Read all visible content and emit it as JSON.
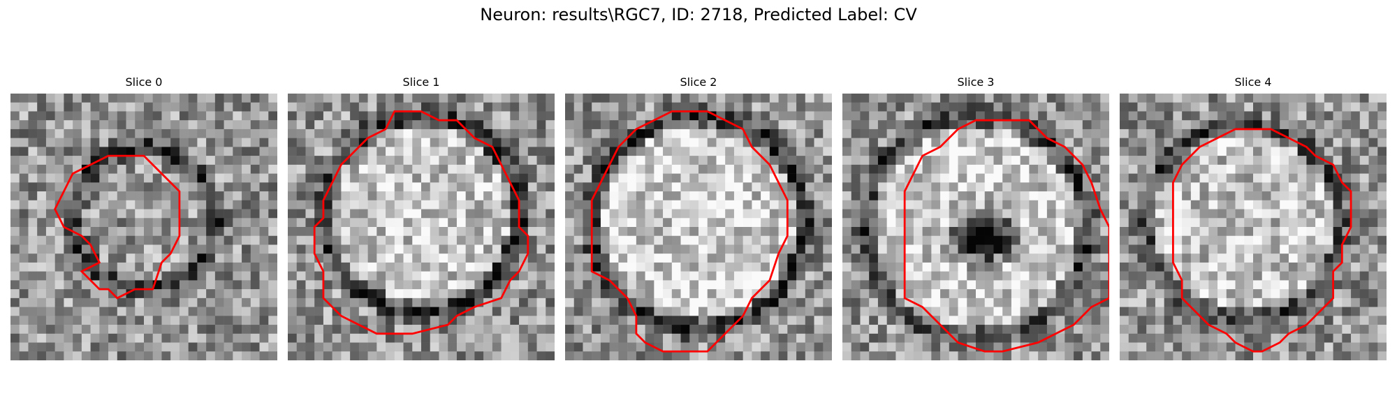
{
  "figure": {
    "title": "Neuron: results\\RGC7, ID: 2718, Predicted Label: CV"
  },
  "contour_color": "#ff0000",
  "panels": [
    {
      "title": "Slice 0"
    },
    {
      "title": "Slice 1"
    },
    {
      "title": "Slice 2"
    },
    {
      "title": "Slice 3"
    },
    {
      "title": "Slice 4"
    }
  ]
}
